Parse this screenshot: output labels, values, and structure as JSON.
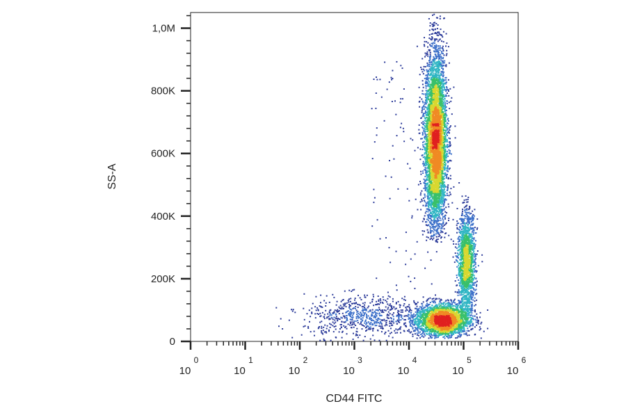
{
  "chart_data": {
    "type": "scatter",
    "style": "density-dot-plot",
    "xlabel": "CD44 FITC",
    "ylabel": "SS-A",
    "x_scale": "log",
    "xlim": [
      1,
      1000000
    ],
    "x_ticks": [
      {
        "base": "10",
        "exp": "0",
        "value": 1
      },
      {
        "base": "10",
        "exp": "1",
        "value": 10
      },
      {
        "base": "10",
        "exp": "2",
        "value": 100
      },
      {
        "base": "10",
        "exp": "3",
        "value": 1000
      },
      {
        "base": "10",
        "exp": "4",
        "value": 10000
      },
      {
        "base": "10",
        "exp": "5",
        "value": 100000
      },
      {
        "base": "10",
        "exp": "6",
        "value": 1000000
      }
    ],
    "y_scale": "linear",
    "ylim": [
      0,
      1050000
    ],
    "y_ticks": [
      {
        "label": "0",
        "value": 0
      },
      {
        "label": "200K",
        "value": 200000
      },
      {
        "label": "400K",
        "value": 400000
      },
      {
        "label": "600K",
        "value": 600000
      },
      {
        "label": "800K",
        "value": 800000
      },
      {
        "label": "1,0M",
        "value": 1000000
      }
    ],
    "grid": false,
    "colormap": [
      "#2b3a99",
      "#3b6fc9",
      "#31b6c4",
      "#39c06a",
      "#d8d830",
      "#f08a24",
      "#e02020"
    ],
    "populations": [
      {
        "x_center": 30000,
        "y_center": 640000,
        "x_spread_decades": 0.1,
        "y_min": 360000,
        "y_max": 1010000,
        "density": "high",
        "count": 5200
      },
      {
        "x_center": 110000,
        "y_center": 250000,
        "x_spread_decades": 0.08,
        "y_min": 80000,
        "y_max": 450000,
        "density": "medium",
        "count": 1700
      },
      {
        "x_center": 40000,
        "y_center": 70000,
        "x_spread_decades": 0.25,
        "y_min": 20000,
        "y_max": 140000,
        "density": "high",
        "count": 2600
      },
      {
        "x_center": 1500,
        "y_center": 80000,
        "x_spread_decades": 0.55,
        "y_min": 10000,
        "y_max": 160000,
        "density": "low",
        "count": 700
      },
      {
        "x_center": 8000,
        "y_center": 300000,
        "x_spread_decades": 0.6,
        "y_min": 100000,
        "y_max": 900000,
        "density": "very-low",
        "count": 110
      }
    ]
  }
}
